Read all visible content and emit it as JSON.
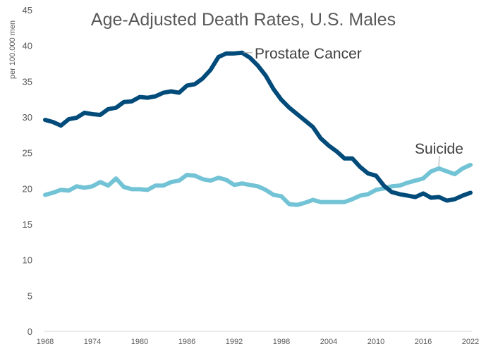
{
  "chart_data": {
    "type": "line",
    "title": "Age-Adjusted Death Rates, U.S. Males",
    "xlabel": "",
    "ylabel": "per 100.000 men",
    "ylim": [
      0,
      45
    ],
    "xlim": [
      1968,
      2022
    ],
    "yticks": [
      "0",
      "5",
      "10",
      "15",
      "20",
      "25",
      "30",
      "35",
      "40",
      "45"
    ],
    "xticks": [
      "1968",
      "1974",
      "1980",
      "1986",
      "1992",
      "1998",
      "2004",
      "2010",
      "2016",
      "2022"
    ],
    "grid": false,
    "legend": "none (direct labels)",
    "x": [
      1968,
      1969,
      1970,
      1971,
      1972,
      1973,
      1974,
      1975,
      1976,
      1977,
      1978,
      1979,
      1980,
      1981,
      1982,
      1983,
      1984,
      1985,
      1986,
      1987,
      1988,
      1989,
      1990,
      1991,
      1992,
      1993,
      1994,
      1995,
      1996,
      1997,
      1998,
      1999,
      2000,
      2001,
      2002,
      2003,
      2004,
      2005,
      2006,
      2007,
      2008,
      2009,
      2010,
      2011,
      2012,
      2013,
      2014,
      2015,
      2016,
      2017,
      2018,
      2019,
      2020,
      2021,
      2022
    ],
    "series": [
      {
        "name": "Prostate Cancer",
        "color": "#004b7a",
        "values": [
          29.6,
          29.3,
          28.8,
          29.7,
          29.9,
          30.6,
          30.4,
          30.3,
          31.1,
          31.3,
          32.1,
          32.2,
          32.8,
          32.7,
          32.9,
          33.4,
          33.6,
          33.4,
          34.4,
          34.6,
          35.4,
          36.6,
          38.4,
          38.9,
          38.9,
          39.0,
          38.3,
          37.2,
          35.8,
          33.9,
          32.4,
          31.3,
          30.4,
          29.5,
          28.6,
          27.0,
          26.0,
          25.2,
          24.2,
          24.2,
          23.0,
          22.1,
          21.8,
          20.4,
          19.5,
          19.2,
          19.0,
          18.8,
          19.3,
          18.7,
          18.8,
          18.3,
          18.5,
          19.0,
          19.4
        ]
      },
      {
        "name": "Suicide",
        "color": "#72c3d5",
        "values": [
          19.1,
          19.4,
          19.8,
          19.7,
          20.3,
          20.1,
          20.3,
          20.9,
          20.4,
          21.4,
          20.2,
          19.9,
          19.9,
          19.8,
          20.4,
          20.4,
          20.9,
          21.1,
          21.9,
          21.8,
          21.3,
          21.1,
          21.5,
          21.2,
          20.5,
          20.7,
          20.5,
          20.3,
          19.8,
          19.1,
          18.9,
          17.8,
          17.7,
          18.0,
          18.4,
          18.1,
          18.1,
          18.1,
          18.1,
          18.5,
          19.0,
          19.2,
          19.8,
          20.0,
          20.3,
          20.4,
          20.8,
          21.1,
          21.4,
          22.4,
          22.8,
          22.4,
          22.0,
          22.8,
          23.3
        ]
      }
    ]
  }
}
